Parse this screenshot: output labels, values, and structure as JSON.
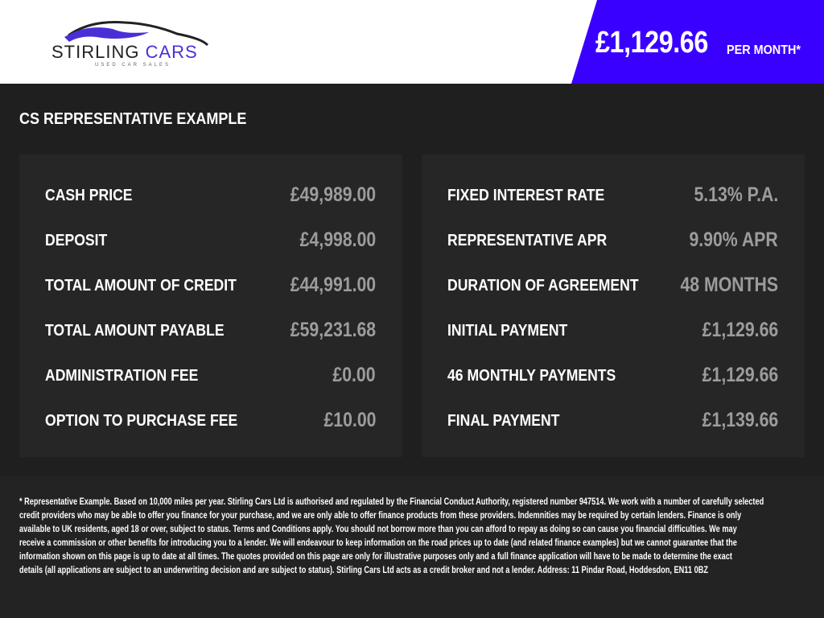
{
  "logo": {
    "brand": "STIRLING CARS",
    "tagline": "USED CAR SALES",
    "colors": {
      "primary": "#222222",
      "accent": "#4b2fd6"
    }
  },
  "banner": {
    "price": "£1,129.66",
    "per": "PER MONTH*",
    "color": "#3a00ff"
  },
  "title": "CS REPRESENTATIVE EXAMPLE",
  "left": [
    {
      "label": "CASH PRICE",
      "value": "£49,989.00"
    },
    {
      "label": "DEPOSIT",
      "value": "£4,998.00"
    },
    {
      "label": "TOTAL AMOUNT OF CREDIT",
      "value": "£44,991.00"
    },
    {
      "label": "TOTAL AMOUNT PAYABLE",
      "value": "£59,231.68"
    },
    {
      "label": "ADMINISTRATION FEE",
      "value": "£0.00"
    },
    {
      "label": "OPTION TO PURCHASE FEE",
      "value": "£10.00"
    }
  ],
  "right": [
    {
      "label": "FIXED INTEREST RATE",
      "value": "5.13% P.A."
    },
    {
      "label": "REPRESENTATIVE APR",
      "value": "9.90% APR"
    },
    {
      "label": "DURATION OF AGREEMENT",
      "value": "48 MONTHS"
    },
    {
      "label": "INITIAL PAYMENT",
      "value": "£1,129.66"
    },
    {
      "label": "46 MONTHLY PAYMENTS",
      "value": "£1,129.66"
    },
    {
      "label": "FINAL PAYMENT",
      "value": "£1,139.66"
    }
  ],
  "disclaimer": [
    "* Representative Example. Based on 10,000 miles per year. Stirling Cars Ltd is authorised and regulated by the Financial Conduct Authority, registered number 947514. We work with a number of carefully selected",
    "credit providers who may be able to offer you finance for your purchase, and we are only able to offer finance products from these providers. Indemnities may be required by certain lenders. Finance is only",
    "available to UK residents, aged 18 or over, subject to status. Terms and Conditions apply. You should not borrow more than you can afford to repay as doing so can cause you financial difficulties. We may",
    "receive a commission or other benefits for introducing you to a lender. We will endeavour to keep information on the road prices up to date (and related finance examples) but we cannot guarantee that the",
    "information shown on this page is up to date at all times. The quotes provided on this page are only for illustrative purposes only and a full finance application will have to be made to determine the exact",
    "details (all applications are subject to an underwriting decision and are subject to status). Stirling Cars Ltd acts as a credit broker and not a lender. Address: 11 Pindar Road, Hoddesdon, EN11 0BZ"
  ]
}
